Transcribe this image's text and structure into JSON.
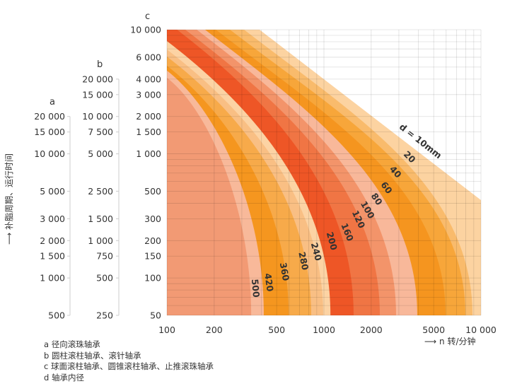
{
  "chart_data": {
    "type": "area",
    "title": "",
    "xlabel": "n 转/分钟",
    "ylabel": "补脂周期、运行时间",
    "x_scale": "log",
    "y_scale": "log",
    "xlim": [
      100,
      10000
    ],
    "ylim": [
      50,
      10000
    ],
    "grid": true,
    "x_ticks": [
      "100",
      "200",
      "500",
      "1000",
      "2000",
      "5000",
      "10 000"
    ],
    "x_tick_values": [
      100,
      200,
      500,
      1000,
      2000,
      5000,
      10000
    ],
    "axes": {
      "c": {
        "header": "c",
        "ticks": [
          {
            "label": "10 000",
            "c": 10000
          },
          {
            "label": "6 000",
            "c": 6000
          },
          {
            "label": "4 000",
            "c": 4000
          },
          {
            "label": "3 000",
            "c": 3000
          },
          {
            "label": "2 000",
            "c": 2000
          },
          {
            "label": "1 500",
            "c": 1500
          },
          {
            "label": "1 000",
            "c": 1000
          },
          {
            "label": "500",
            "c": 500
          },
          {
            "label": "300",
            "c": 300
          },
          {
            "label": "200",
            "c": 200
          },
          {
            "label": "150",
            "c": 150
          },
          {
            "label": "100",
            "c": 100
          },
          {
            "label": "50",
            "c": 50
          }
        ]
      },
      "b": {
        "header": "b",
        "ticks": [
          {
            "label": "20 000",
            "c": 4000
          },
          {
            "label": "15 000",
            "c": 3000
          },
          {
            "label": "10 000",
            "c": 2000
          },
          {
            "label": "7 500",
            "c": 1500
          },
          {
            "label": "5 000",
            "c": 1000
          },
          {
            "label": "2 500",
            "c": 500
          },
          {
            "label": "1 500",
            "c": 300
          },
          {
            "label": "1 000",
            "c": 200
          },
          {
            "label": "750",
            "c": 150
          },
          {
            "label": "500",
            "c": 100
          },
          {
            "label": "250",
            "c": 50
          }
        ]
      },
      "a": {
        "header": "a",
        "ticks": [
          {
            "label": "20 000",
            "c": 2000
          },
          {
            "label": "15 000",
            "c": 1500
          },
          {
            "label": "10 000",
            "c": 1000
          },
          {
            "label": "5 000",
            "c": 500
          },
          {
            "label": "3 000",
            "c": 300
          },
          {
            "label": "2 000",
            "c": 200
          },
          {
            "label": "1 500",
            "c": 150
          },
          {
            "label": "1 000",
            "c": 100
          },
          {
            "label": "500",
            "c": 50
          }
        ]
      }
    },
    "curves": [
      {
        "d": 10,
        "label": "d = 10mm",
        "start": {
          "edge": "top",
          "n": 389
        },
        "end": {
          "edge": "right",
          "c": 424
        },
        "color": "#fcd3a1"
      },
      {
        "d": 20,
        "label": "20",
        "start": {
          "edge": "top",
          "n": 310
        },
        "end": {
          "edge": "bottom",
          "n": 8830
        },
        "color": "#f9bb6c"
      },
      {
        "d": 40,
        "label": "40",
        "start": {
          "edge": "top",
          "n": 252
        },
        "end": {
          "edge": "bottom",
          "n": 7960
        },
        "color": "#f7a63a"
      },
      {
        "d": 60,
        "label": "60",
        "start": {
          "edge": "top",
          "n": 205
        },
        "end": {
          "edge": "bottom",
          "n": 5950
        },
        "color": "#f5951f"
      },
      {
        "d": 80,
        "label": "80",
        "start": {
          "edge": "top",
          "n": 175
        },
        "end": {
          "edge": "bottom",
          "n": 3930
        },
        "color": "#f8b89a"
      },
      {
        "d": 100,
        "label": "100",
        "start": {
          "edge": "top",
          "n": 155
        },
        "end": {
          "edge": "bottom",
          "n": 2880
        },
        "color": "#f3946a"
      },
      {
        "d": 120,
        "label": "120",
        "start": {
          "edge": "top",
          "n": 131
        },
        "end": {
          "edge": "bottom",
          "n": 2270
        },
        "color": "#f07544"
      },
      {
        "d": 160,
        "label": "160",
        "start": {
          "edge": "top",
          "n": 116
        },
        "end": {
          "edge": "bottom",
          "n": 1545
        },
        "color": "#ee5626"
      },
      {
        "d": 200,
        "label": "200",
        "start": {
          "edge": "left",
          "c": 8110
        },
        "end": {
          "edge": "bottom",
          "n": 1100
        },
        "color": "#fcd3a4"
      },
      {
        "d": 240,
        "label": "240",
        "start": {
          "edge": "left",
          "c": 6930
        },
        "end": {
          "edge": "bottom",
          "n": 989
        },
        "color": "#f9bf84"
      },
      {
        "d": 280,
        "label": "280",
        "start": {
          "edge": "left",
          "c": 6080
        },
        "end": {
          "edge": "bottom",
          "n": 830
        },
        "color": "#f7aa4a"
      },
      {
        "d": 360,
        "label": "360",
        "start": {
          "edge": "left",
          "c": 5120
        },
        "end": {
          "edge": "bottom",
          "n": 596
        },
        "color": "#f5961f"
      },
      {
        "d": 420,
        "label": "420",
        "start": {
          "edge": "left",
          "c": 4680
        },
        "end": {
          "edge": "bottom",
          "n": 414
        },
        "color": "#f8b99a"
      },
      {
        "d": 500,
        "label": "500",
        "start": {
          "edge": "left",
          "c": 4100
        },
        "end": {
          "edge": "bottom",
          "n": 344
        },
        "color": "#f29a74"
      }
    ]
  },
  "legend": [
    "a 径向滚珠轴承",
    "b 圆柱滚柱轴承、滚针轴承",
    "c 球面滚柱轴承、圆锥滚柱轴承、止推滚珠轴承",
    "d 轴承内径"
  ],
  "x_unit": "n 转/分钟",
  "y_title": "补脂周期、运行时间"
}
